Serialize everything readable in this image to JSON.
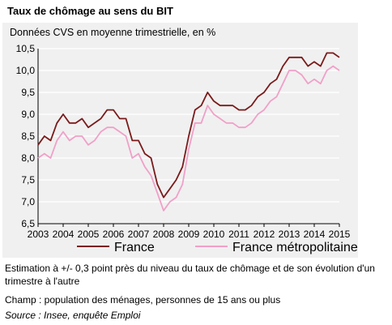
{
  "figure": {
    "title": "Taux de chômage au sens du BIT",
    "notes": [
      "Estimation à +/- 0,3 point près du niveau du taux de chômage et de son évolution d'un trimestre à l'autre",
      "Champ : population des ménages, personnes de 15 ans ou plus"
    ],
    "source": "Source : Insee, enquête Emploi"
  },
  "chart_data": {
    "type": "line",
    "subtitle": "Données CVS en moyenne trimestrielle, en %",
    "xlabel": "",
    "ylabel": "",
    "x_start": "2003 T1",
    "x_tick_labels": [
      "2003",
      "2004",
      "2005",
      "2006",
      "2007",
      "2008",
      "2009",
      "2010",
      "2011",
      "2012",
      "2013",
      "2014",
      "2015"
    ],
    "y_tick_labels": [
      "6,5",
      "7,0",
      "7,5",
      "8,0",
      "8,5",
      "9,0",
      "9,5",
      "10,0",
      "10,5"
    ],
    "ylim": [
      6.5,
      10.5
    ],
    "y_gridlines": true,
    "legend_position": "bottom",
    "series": [
      {
        "name": "France",
        "color": "#7b1a1a",
        "values": [
          8.3,
          8.5,
          8.4,
          8.8,
          9.0,
          8.8,
          8.8,
          8.9,
          8.7,
          8.8,
          8.9,
          9.1,
          9.1,
          8.9,
          8.9,
          8.4,
          8.4,
          8.1,
          8.0,
          7.4,
          7.1,
          7.3,
          7.5,
          7.8,
          8.5,
          9.1,
          9.2,
          9.5,
          9.3,
          9.2,
          9.2,
          9.2,
          9.1,
          9.1,
          9.2,
          9.4,
          9.5,
          9.7,
          9.8,
          10.1,
          10.3,
          10.3,
          10.3,
          10.1,
          10.2,
          10.1,
          10.4,
          10.4,
          10.3
        ]
      },
      {
        "name": "France métropolitaine",
        "color": "#f0a0c8",
        "values": [
          8.0,
          8.1,
          8.0,
          8.4,
          8.6,
          8.4,
          8.5,
          8.5,
          8.3,
          8.4,
          8.6,
          8.7,
          8.7,
          8.6,
          8.5,
          8.0,
          8.1,
          7.8,
          7.6,
          7.2,
          6.8,
          7.0,
          7.1,
          7.4,
          8.2,
          8.8,
          8.8,
          9.2,
          9.0,
          8.9,
          8.8,
          8.8,
          8.7,
          8.7,
          8.8,
          9.0,
          9.1,
          9.3,
          9.4,
          9.7,
          10.0,
          10.0,
          9.9,
          9.7,
          9.8,
          9.7,
          10.0,
          10.1,
          10.0
        ]
      }
    ]
  }
}
